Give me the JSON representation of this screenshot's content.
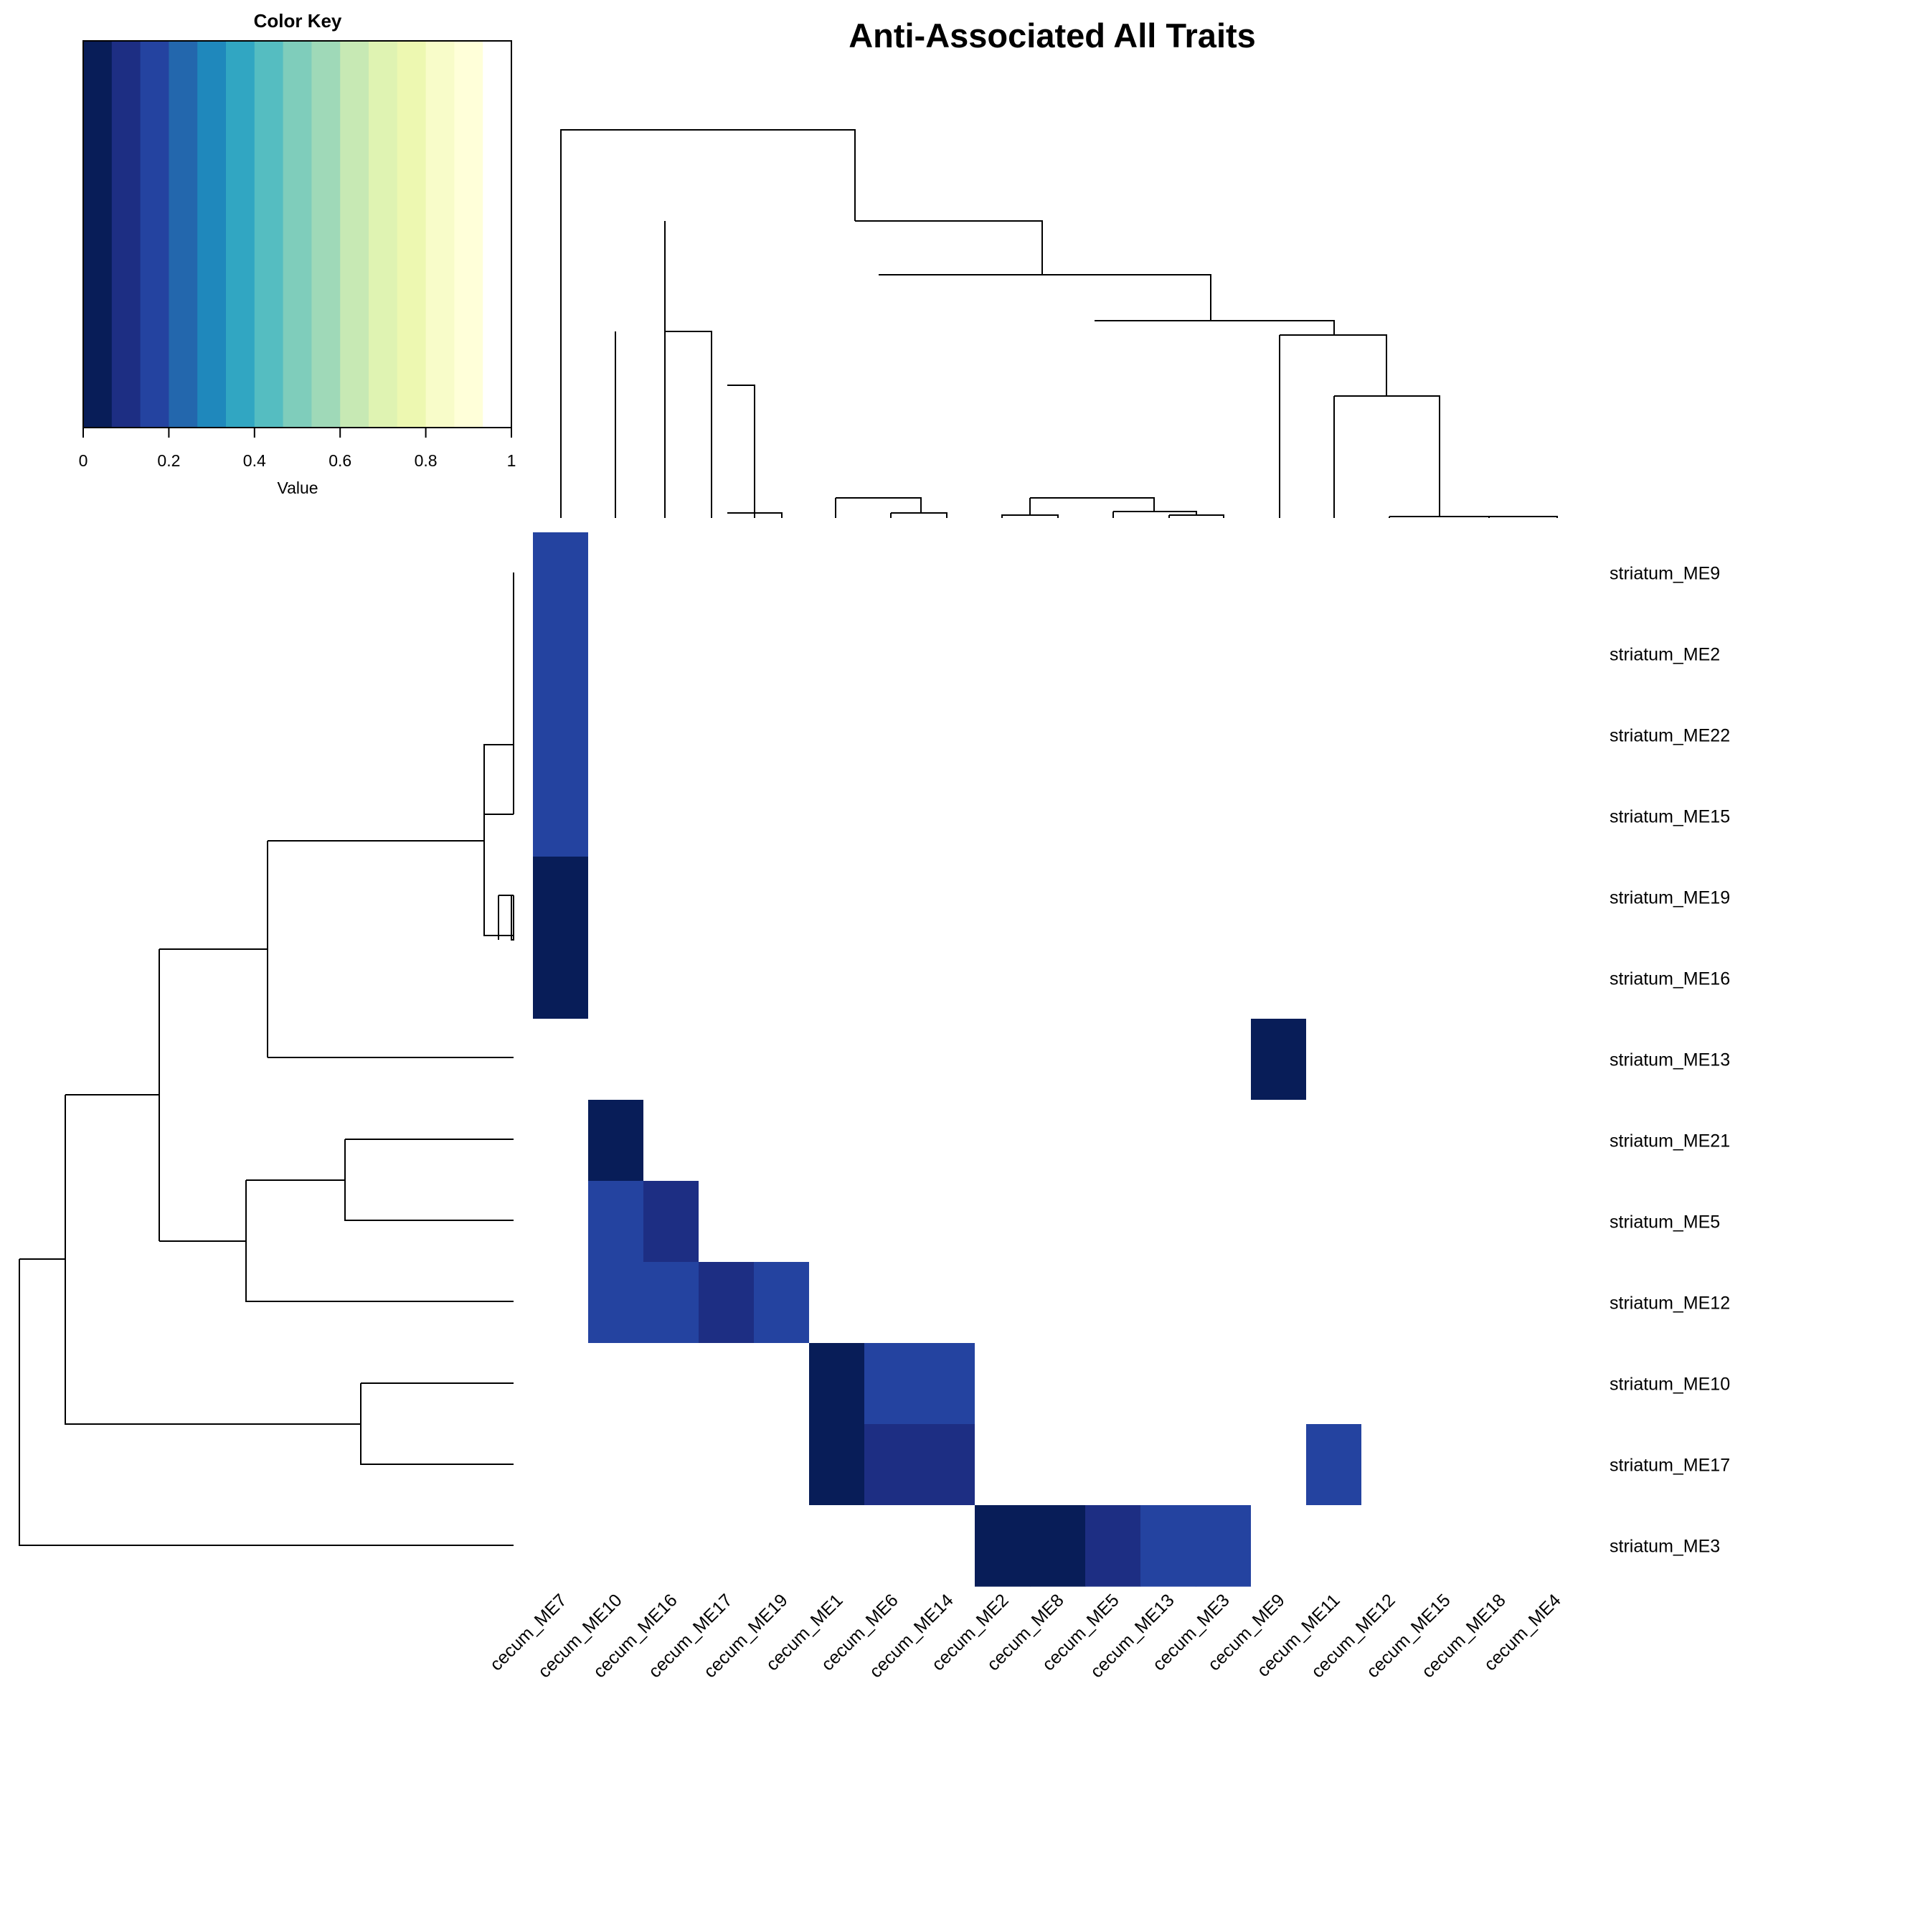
{
  "chart_data": {
    "type": "heatmap",
    "title": "Anti-Associated All Traits",
    "columns": [
      "cecum_ME7",
      "cecum_ME10",
      "cecum_ME16",
      "cecum_ME17",
      "cecum_ME19",
      "cecum_ME1",
      "cecum_ME6",
      "cecum_ME14",
      "cecum_ME2",
      "cecum_ME8",
      "cecum_ME5",
      "cecum_ME13",
      "cecum_ME3",
      "cecum_ME9",
      "cecum_ME11",
      "cecum_ME12",
      "cecum_ME15",
      "cecum_ME18",
      "cecum_ME4"
    ],
    "rows": [
      "striatum_ME9",
      "striatum_ME2",
      "striatum_ME22",
      "striatum_ME15",
      "striatum_ME19",
      "striatum_ME16",
      "striatum_ME13",
      "striatum_ME21",
      "striatum_ME5",
      "striatum_ME12",
      "striatum_ME10",
      "striatum_ME17",
      "striatum_ME3"
    ],
    "values": [
      [
        0.17,
        1,
        1,
        1,
        1,
        1,
        1,
        1,
        1,
        1,
        1,
        1,
        1,
        1,
        1,
        1,
        1,
        1,
        1
      ],
      [
        0.17,
        1,
        1,
        1,
        1,
        1,
        1,
        1,
        1,
        1,
        1,
        1,
        1,
        1,
        1,
        1,
        1,
        1,
        1
      ],
      [
        0.17,
        1,
        1,
        1,
        1,
        1,
        1,
        1,
        1,
        1,
        1,
        1,
        1,
        1,
        1,
        1,
        1,
        1,
        1
      ],
      [
        0.17,
        1,
        1,
        1,
        1,
        1,
        1,
        1,
        1,
        1,
        1,
        1,
        1,
        1,
        1,
        1,
        1,
        1,
        1
      ],
      [
        0.03,
        1,
        1,
        1,
        1,
        1,
        1,
        1,
        1,
        1,
        1,
        1,
        1,
        1,
        1,
        1,
        1,
        1,
        1
      ],
      [
        0.03,
        1,
        1,
        1,
        1,
        1,
        1,
        1,
        1,
        1,
        1,
        1,
        1,
        1,
        1,
        1,
        1,
        1,
        1
      ],
      [
        1,
        1,
        1,
        1,
        1,
        1,
        1,
        1,
        1,
        1,
        1,
        1,
        1,
        0.03,
        1,
        1,
        1,
        1,
        1
      ],
      [
        1,
        0.03,
        1,
        1,
        1,
        1,
        1,
        1,
        1,
        1,
        1,
        1,
        1,
        1,
        1,
        1,
        1,
        1,
        1
      ],
      [
        1,
        0.17,
        0.1,
        1,
        1,
        1,
        1,
        1,
        1,
        1,
        1,
        1,
        1,
        1,
        1,
        1,
        1,
        1,
        1
      ],
      [
        1,
        0.17,
        0.17,
        0.1,
        0.17,
        1,
        1,
        1,
        1,
        1,
        1,
        1,
        1,
        1,
        1,
        1,
        1,
        1,
        1
      ],
      [
        1,
        1,
        1,
        1,
        1,
        0.03,
        0.17,
        0.17,
        1,
        1,
        1,
        1,
        1,
        1,
        1,
        1,
        1,
        1,
        1
      ],
      [
        1,
        1,
        1,
        1,
        1,
        0.03,
        0.1,
        0.1,
        1,
        1,
        1,
        1,
        1,
        1,
        0.17,
        1,
        1,
        1,
        1
      ],
      [
        1,
        1,
        1,
        1,
        1,
        1,
        1,
        1,
        0.03,
        0.03,
        0.1,
        0.17,
        0.17,
        1,
        1,
        1,
        1,
        1,
        1
      ]
    ],
    "color_key": {
      "title": "Color Key",
      "xlabel": "Value",
      "range": [
        0,
        1
      ],
      "ticks": [
        "0",
        "0.2",
        "0.4",
        "0.6",
        "0.8",
        "1"
      ],
      "colors": [
        "#081d58",
        "#1d2e83",
        "#2443a0",
        "#2367ad",
        "#1f88bc",
        "#31a6c2",
        "#55bdc1",
        "#7fcdbb",
        "#9fd9b8",
        "#c7e9b4",
        "#dff3b2",
        "#edf8b1",
        "#f8fcc9",
        "#ffffd9",
        "#ffffff"
      ]
    }
  }
}
